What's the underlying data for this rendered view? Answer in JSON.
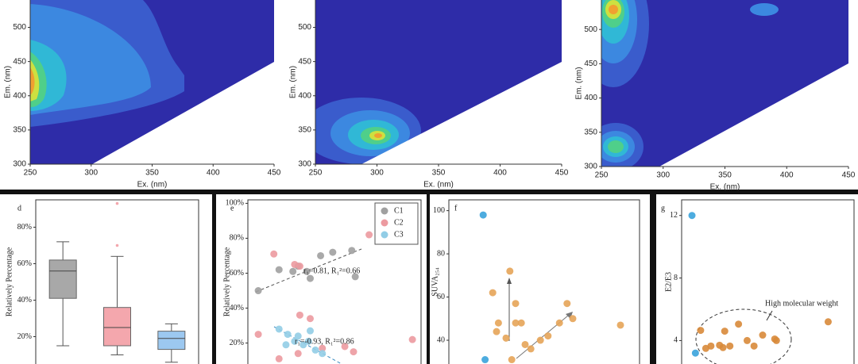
{
  "chart_data": [
    {
      "type": "contour",
      "xlabel": "Ex. (nm)",
      "ylabel": "Em. (nm)",
      "xlim": [
        250,
        450
      ],
      "ylim": [
        300,
        540
      ],
      "xticks": [
        250,
        300,
        350,
        400,
        450
      ],
      "yticks": [
        300,
        350,
        400,
        450,
        500
      ]
    },
    {
      "type": "contour",
      "xlabel": "Ex. (nm)",
      "ylabel": "Em. (nm)",
      "xlim": [
        250,
        450
      ],
      "ylim": [
        300,
        540
      ],
      "xticks": [
        250,
        300,
        350,
        400,
        450
      ],
      "yticks": [
        300,
        350,
        400,
        450,
        500
      ]
    },
    {
      "type": "contour",
      "xlabel": "Ex. (nm)",
      "ylabel": "Em. (nm)",
      "xlim": [
        250,
        450
      ],
      "ylim": [
        300,
        543
      ],
      "xticks": [
        250,
        300,
        350,
        400,
        450
      ],
      "yticks": [
        300,
        350,
        400,
        450,
        500
      ]
    },
    {
      "type": "box",
      "panel": "d",
      "ylabel": "Relatively Percentage",
      "ylim": [
        5,
        95
      ],
      "yticks": [
        {
          "value": 20,
          "label": "20%"
        },
        {
          "value": 40,
          "label": "40%"
        },
        {
          "value": 60,
          "label": "60%"
        },
        {
          "value": 80,
          "label": "80%"
        }
      ],
      "categories": [
        null,
        null,
        null
      ],
      "boxes": [
        {
          "color": "#a8a8a8",
          "whislo": 15,
          "q1": 41,
          "med": 56,
          "q3": 62,
          "whishi": 72,
          "fliers": []
        },
        {
          "color": "#f4a7ad",
          "whislo": 10,
          "q1": 15,
          "med": 25,
          "q3": 36,
          "whishi": 64,
          "fliers": [
            70,
            93
          ]
        },
        {
          "color": "#9cc8f0",
          "whislo": 6,
          "q1": 13,
          "med": 19,
          "q3": 23,
          "whishi": 27,
          "fliers": []
        }
      ]
    },
    {
      "type": "scatter",
      "panel": "e",
      "ylabel": "Relatively Percentage",
      "xlim": [
        0,
        100
      ],
      "ylim": [
        8,
        102
      ],
      "yticks": [
        {
          "value": 20,
          "label": "20%"
        },
        {
          "value": 40,
          "label": "40%"
        },
        {
          "value": 60,
          "label": "60%"
        },
        {
          "value": 80,
          "label": "80%"
        },
        {
          "value": 100,
          "label": "100%"
        }
      ],
      "legend": "upper right",
      "annotations": [
        "r₁=0.81, R₁²=0.66",
        "r₁=-0.93, R₁²=0.86"
      ],
      "series": [
        {
          "name": "C1",
          "color": "#a0a0a0",
          "x": [
            6,
            18,
            26,
            29,
            36,
            34,
            42,
            49,
            62,
            60
          ],
          "values": [
            50,
            62,
            61,
            64,
            57,
            61,
            70,
            72,
            58,
            73
          ]
        },
        {
          "name": "C2",
          "color": "#ec9aa0",
          "x": [
            15,
            6,
            27,
            30,
            30,
            36,
            18,
            43,
            56,
            70,
            95,
            61,
            29
          ],
          "values": [
            71,
            25,
            65,
            64,
            36,
            34,
            11,
            17,
            18,
            82,
            22,
            15,
            14
          ]
        },
        {
          "name": "C3",
          "color": "#92cde6",
          "x": [
            18,
            23,
            29,
            35,
            39,
            43,
            22,
            32,
            36,
            27
          ],
          "values": [
            28,
            25,
            24,
            21,
            16,
            14,
            19,
            19,
            27,
            21
          ]
        }
      ]
    },
    {
      "type": "scatter",
      "panel": "f",
      "ylabel": "SUVA₂₅₄",
      "xlim": [
        0,
        100
      ],
      "ylim": [
        29,
        105
      ],
      "yticks": [
        40,
        60,
        80,
        100
      ],
      "series": [
        {
          "color": "#3aa3dc",
          "x": [
            18,
            19
          ],
          "values": [
            98,
            31
          ]
        },
        {
          "color": "#e6a458",
          "x": [
            32,
            23,
            35,
            26,
            35,
            38,
            30,
            25,
            40,
            48,
            43,
            52,
            58,
            62,
            65,
            90,
            33
          ],
          "values": [
            72,
            62,
            57,
            48,
            48,
            48,
            41,
            44,
            38,
            40,
            36,
            42,
            48,
            57,
            50,
            47,
            31
          ]
        }
      ]
    },
    {
      "type": "scatter",
      "panel": "g",
      "ylabel": "E2/E3",
      "xlim": [
        0,
        100
      ],
      "ylim": [
        2.5,
        13
      ],
      "yticks": [
        4,
        8,
        12
      ],
      "annotations": [
        "High molecular weight"
      ],
      "series": [
        {
          "color": "#3aa3dc",
          "x": [
            6,
            8
          ],
          "values": [
            12,
            3.2
          ]
        },
        {
          "color": "#d88a3a",
          "x": [
            11,
            14,
            17,
            22,
            24,
            28,
            25,
            33,
            38,
            42,
            47,
            54,
            55,
            85
          ],
          "values": [
            4.65,
            3.5,
            3.65,
            3.7,
            3.55,
            3.65,
            4.6,
            5.05,
            4,
            3.65,
            4.35,
            4.1,
            4,
            5.2
          ]
        }
      ]
    }
  ]
}
